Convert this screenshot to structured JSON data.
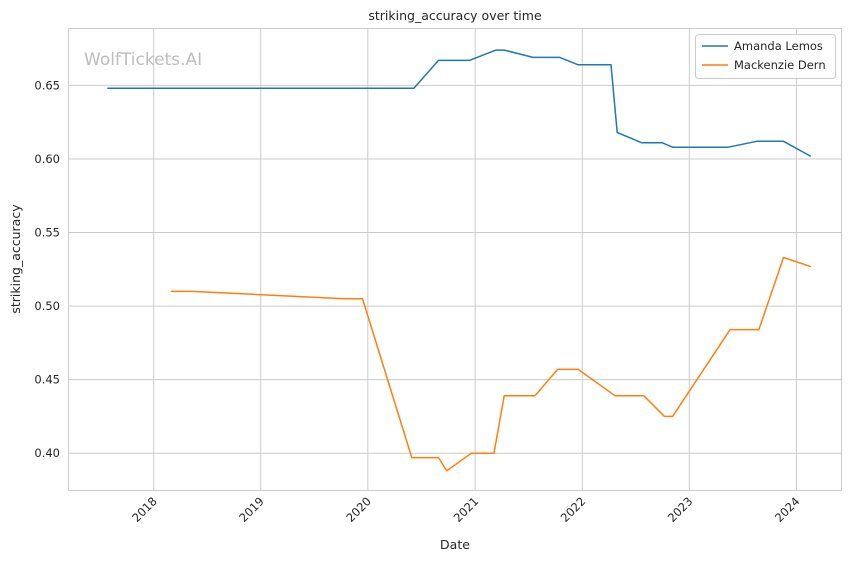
{
  "chart_data": {
    "type": "line",
    "title": "striking_accuracy over time",
    "xlabel": "Date",
    "ylabel": "striking_accuracy",
    "watermark": "WolfTickets.AI",
    "x_ticks": [
      "2018",
      "2019",
      "2020",
      "2021",
      "2022",
      "2023",
      "2024"
    ],
    "y_ticks": [
      "0.40",
      "0.45",
      "0.50",
      "0.55",
      "0.60",
      "0.65"
    ],
    "xlim": [
      "2017-03-15",
      "2024-06-01"
    ],
    "ylim": [
      0.375,
      0.689
    ],
    "grid": true,
    "legend_position": "top-right",
    "series": [
      {
        "name": "Amanda Lemos",
        "color": "#1f77b4",
        "points": [
          [
            "2017-07-29",
            0.648
          ],
          [
            "2020-06-06",
            0.648
          ],
          [
            "2020-08-29",
            0.667
          ],
          [
            "2020-12-12",
            0.667
          ],
          [
            "2021-03-13",
            0.674
          ],
          [
            "2021-04-10",
            0.674
          ],
          [
            "2021-07-17",
            0.669
          ],
          [
            "2021-10-16",
            0.669
          ],
          [
            "2021-12-18",
            0.664
          ],
          [
            "2022-04-09",
            0.664
          ],
          [
            "2022-04-30",
            0.618
          ],
          [
            "2022-07-23",
            0.611
          ],
          [
            "2022-10-01",
            0.611
          ],
          [
            "2022-11-05",
            0.608
          ],
          [
            "2023-05-13",
            0.608
          ],
          [
            "2023-08-19",
            0.612
          ],
          [
            "2023-11-18",
            0.612
          ],
          [
            "2024-02-17",
            0.602
          ]
        ]
      },
      {
        "name": "Mackenzie Dern",
        "color": "#ff7f0e",
        "points": [
          [
            "2018-03-03",
            0.51
          ],
          [
            "2018-05-12",
            0.51
          ],
          [
            "2019-10-12",
            0.505
          ],
          [
            "2019-12-14",
            0.505
          ],
          [
            "2020-05-30",
            0.397
          ],
          [
            "2020-08-29",
            0.397
          ],
          [
            "2020-09-26",
            0.388
          ],
          [
            "2020-12-19",
            0.4
          ],
          [
            "2021-03-06",
            0.4
          ],
          [
            "2021-04-10",
            0.439
          ],
          [
            "2021-07-24",
            0.439
          ],
          [
            "2021-10-09",
            0.457
          ],
          [
            "2021-12-18",
            0.457
          ],
          [
            "2022-04-23",
            0.439
          ],
          [
            "2022-07-30",
            0.439
          ],
          [
            "2022-10-08",
            0.425
          ],
          [
            "2022-11-05",
            0.425
          ],
          [
            "2023-05-20",
            0.484
          ],
          [
            "2023-08-26",
            0.484
          ],
          [
            "2023-11-18",
            0.533
          ],
          [
            "2024-02-17",
            0.527
          ]
        ]
      }
    ]
  }
}
